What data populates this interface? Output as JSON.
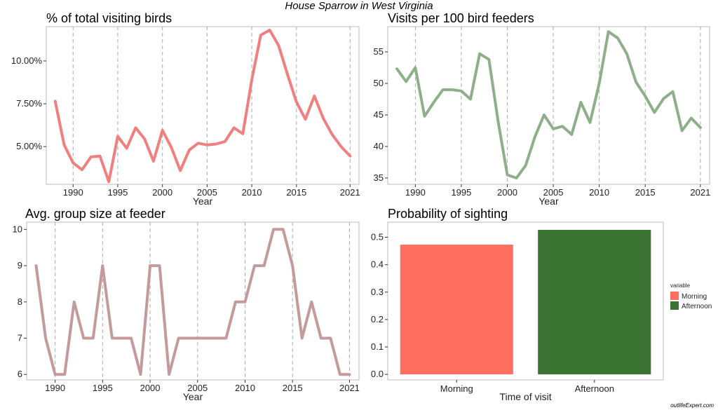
{
  "title": "House Sparrow in West Virginia",
  "watermark": "outlifeExpert.com",
  "colors": {
    "pct_line": "#F08080",
    "visits_line": "#8FAF8B",
    "group_line": "#C49A9A",
    "morning": "#FF6F61",
    "afternoon": "#3B7332",
    "grid": "#AAAAAA",
    "frame": "#BBBBBB"
  },
  "chart_data": [
    {
      "type": "line",
      "title": "% of total visiting birds",
      "xlabel": "Year",
      "ylabel": "",
      "xlim": [
        1987,
        2022
      ],
      "ylim": [
        2.8,
        12.0
      ],
      "x_ticks": [
        1990,
        1995,
        2000,
        2005,
        2010,
        2015,
        2021
      ],
      "y_ticks": [
        5,
        7.5,
        10
      ],
      "y_tick_labels": [
        "5.00%",
        "7.50%",
        "10.00%"
      ],
      "grid": "vertical-dashed",
      "series": [
        {
          "x": [
            1988,
            1989,
            1990,
            1991,
            1992,
            1993,
            1994,
            1995,
            1996,
            1997,
            1998,
            1999,
            2000,
            2001,
            2002,
            2003,
            2004,
            2005,
            2006,
            2007,
            2008,
            2009,
            2010,
            2011,
            2012,
            2013,
            2014,
            2015,
            2016,
            2017,
            2018,
            2019,
            2020,
            2021
          ],
          "values": [
            7.65,
            5.1,
            4.05,
            3.65,
            4.4,
            4.45,
            2.95,
            5.6,
            4.9,
            6.1,
            5.45,
            4.15,
            5.95,
            4.95,
            3.6,
            4.8,
            5.2,
            5.1,
            5.15,
            5.3,
            6.1,
            5.75,
            8.9,
            11.5,
            11.8,
            10.9,
            9.2,
            7.6,
            6.6,
            7.95,
            6.65,
            5.7,
            5.0,
            4.45
          ]
        }
      ]
    },
    {
      "type": "line",
      "title": "Visits per 100 bird feeders",
      "xlabel": "Year",
      "ylabel": "",
      "xlim": [
        1987,
        2022
      ],
      "ylim": [
        34,
        59
      ],
      "x_ticks": [
        1990,
        1995,
        2000,
        2005,
        2010,
        2015,
        2021
      ],
      "y_ticks": [
        35,
        40,
        45,
        50,
        55
      ],
      "grid": "vertical-dashed",
      "series": [
        {
          "x": [
            1988,
            1989,
            1990,
            1991,
            1992,
            1993,
            1994,
            1995,
            1996,
            1997,
            1998,
            1999,
            2000,
            2001,
            2002,
            2003,
            2004,
            2005,
            2006,
            2007,
            2008,
            2009,
            2010,
            2011,
            2012,
            2013,
            2014,
            2015,
            2016,
            2017,
            2018,
            2019,
            2020,
            2021
          ],
          "values": [
            52.3,
            50.3,
            52.5,
            44.8,
            47.0,
            49.0,
            49.0,
            48.8,
            47.5,
            54.7,
            53.8,
            44.0,
            35.5,
            35.0,
            37.0,
            41.5,
            45.0,
            42.8,
            43.2,
            41.9,
            47.0,
            43.8,
            50.0,
            58.2,
            57.2,
            54.7,
            50.2,
            48.0,
            45.4,
            47.6,
            48.7,
            42.5,
            44.5,
            43.0
          ]
        }
      ]
    },
    {
      "type": "line",
      "title": "Avg. group size at feeder",
      "xlabel": "Year",
      "ylabel": "",
      "xlim": [
        1987,
        2022
      ],
      "ylim": [
        5.85,
        10.2
      ],
      "x_ticks": [
        1990,
        1995,
        2000,
        2005,
        2010,
        2015,
        2021
      ],
      "y_ticks": [
        6,
        7,
        8,
        9,
        10
      ],
      "grid": "vertical-dashed",
      "series": [
        {
          "x": [
            1988,
            1989,
            1990,
            1991,
            1992,
            1993,
            1994,
            1995,
            1996,
            1997,
            1998,
            1999,
            2000,
            2001,
            2002,
            2003,
            2004,
            2005,
            2006,
            2007,
            2008,
            2009,
            2010,
            2011,
            2012,
            2013,
            2014,
            2015,
            2016,
            2017,
            2018,
            2019,
            2020,
            2021
          ],
          "values": [
            9,
            7,
            6,
            6,
            8,
            7,
            7,
            9,
            7,
            7,
            7,
            6,
            9,
            9,
            6,
            7,
            7,
            7,
            7,
            7,
            7,
            8,
            8,
            9,
            9,
            10,
            10,
            9,
            7,
            8,
            7,
            7,
            6,
            6
          ]
        }
      ]
    },
    {
      "type": "bar",
      "title": "Probability of sighting",
      "xlabel": "Time of visit",
      "ylabel": "",
      "categories": [
        "Morning",
        "Afternoon"
      ],
      "values": [
        0.473,
        0.527
      ],
      "ylim": [
        -0.02,
        0.555
      ],
      "y_ticks": [
        0,
        0.1,
        0.2,
        0.3,
        0.4,
        0.5
      ],
      "y_tick_labels": [
        "0.0",
        "0.1",
        "0.2",
        "0.3",
        "0.4",
        "0.5"
      ],
      "legend": {
        "title": "variable",
        "placement": "right",
        "entries": [
          "Morning",
          "Afternoon"
        ]
      }
    }
  ]
}
